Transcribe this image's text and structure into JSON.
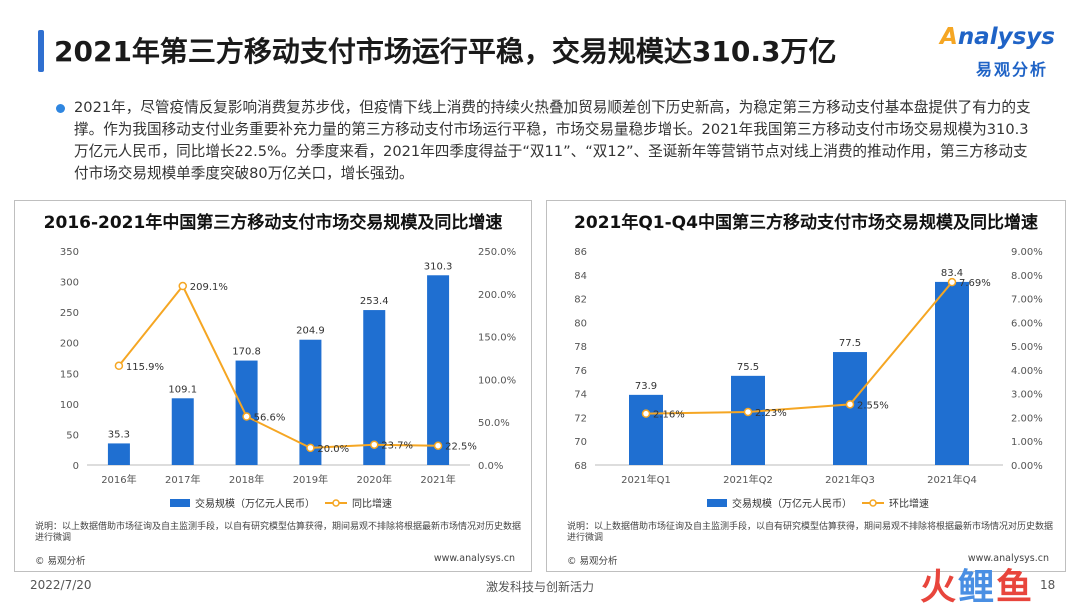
{
  "page": {
    "title": "2021年第三方移动支付市场运行平稳，交易规模达310.3万亿",
    "logo_en": "nalysys",
    "logo_en_initial": "A",
    "logo_cn": "易观分析",
    "paragraph": "2021年，尽管疫情反复影响消费复苏步伐，但疫情下线上消费的持续火热叠加贸易顺差创下历史新高，为稳定第三方移动支付基本盘提供了有力的支撑。作为我国移动支付业务重要补充力量的第三方移动支付市场运行平稳，市场交易量稳步增长。2021年我国第三方移动支付市场交易规模为310.3万亿元人民币，同比增长22.5%。分季度来看，2021年四季度得益于“双11”、“双12”、圣诞新年等营销节点对线上消费的推动作用，第三方移动支付市场交易规模单季度突破80万亿关口，增长强劲。",
    "footer_date": "2022/7/20",
    "footer_center": "激发科技与创新活力",
    "footer_page": "18",
    "watermark_1": "火",
    "watermark_2": "鲤",
    "watermark_3": "鱼",
    "colors": {
      "bar": "#1f6fd1",
      "line": "#f5a623",
      "accent": "#2f6fd0"
    }
  },
  "chart_data": [
    {
      "type": "bar",
      "title": "2016-2021年中国第三方移动支付市场交易规模及同比增速",
      "categories": [
        "2016年",
        "2017年",
        "2018年",
        "2019年",
        "2020年",
        "2021年"
      ],
      "series": [
        {
          "name": "交易规模（万亿元人民币）",
          "type": "bar",
          "axis": "left",
          "values": [
            35.3,
            109.1,
            170.8,
            204.9,
            253.4,
            310.3
          ],
          "labels": [
            "35.3",
            "109.1",
            "170.8",
            "204.9",
            "253.4",
            "310.3"
          ]
        },
        {
          "name": "同比增速",
          "type": "line",
          "axis": "right",
          "values": [
            115.9,
            209.1,
            56.6,
            20.0,
            23.7,
            22.5
          ],
          "labels": [
            "115.9%",
            "209.1%",
            "56.6%",
            "20.0%",
            "23.7%",
            "22.5%"
          ]
        }
      ],
      "ylim": [
        0,
        350
      ],
      "y_ticks": [
        "0",
        "50",
        "100",
        "150",
        "200",
        "250",
        "300",
        "350"
      ],
      "y2lim": [
        0,
        250
      ],
      "y2_ticks": [
        "0.0%",
        "50.0%",
        "100.0%",
        "150.0%",
        "200.0%",
        "250.0%"
      ],
      "legend_position": "bottom",
      "note": "说明：以上数据借助市场征询及自主监测手段，以自有研究模型估算获得，期间易观不排除将根据最新市场情况对历史数据进行微调",
      "source": "© 易观分析",
      "website": "www.analysys.cn"
    },
    {
      "type": "bar",
      "title": "2021年Q1-Q4中国第三方移动支付市场交易规模及同比增速",
      "categories": [
        "2021年Q1",
        "2021年Q2",
        "2021年Q3",
        "2021年Q4"
      ],
      "series": [
        {
          "name": "交易规模（万亿元人民币）",
          "type": "bar",
          "axis": "left",
          "values": [
            73.9,
            75.5,
            77.5,
            83.4
          ],
          "labels": [
            "73.9",
            "75.5",
            "77.5",
            "83.4"
          ]
        },
        {
          "name": "环比增速",
          "type": "line",
          "axis": "right",
          "values": [
            2.16,
            2.23,
            2.55,
            7.69
          ],
          "labels": [
            "2.16%",
            "2.23%",
            "2.55%",
            "7.69%"
          ]
        }
      ],
      "ylim": [
        68,
        86
      ],
      "y_ticks": [
        "68",
        "70",
        "72",
        "74",
        "76",
        "78",
        "80",
        "82",
        "84",
        "86"
      ],
      "y2lim": [
        0,
        9
      ],
      "y2_ticks": [
        "0.00%",
        "1.00%",
        "2.00%",
        "3.00%",
        "4.00%",
        "5.00%",
        "6.00%",
        "7.00%",
        "8.00%",
        "9.00%"
      ],
      "legend_position": "bottom",
      "note": "说明：以上数据借助市场征询及自主监测手段，以自有研究模型估算获得，期间易观不排除将根据最新市场情况对历史数据进行微调",
      "source": "© 易观分析",
      "website": "www.analysys.cn"
    }
  ]
}
